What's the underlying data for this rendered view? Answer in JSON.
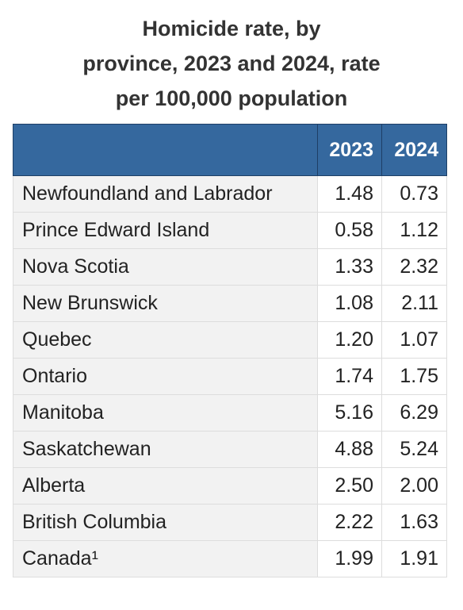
{
  "header": {
    "title": [
      "Homicide rate, by",
      "province, 2023 and 2024, rate",
      "per 100,000 population"
    ]
  },
  "table": {
    "columns": [
      "2023",
      "2024"
    ],
    "rows": [
      [
        "Newfoundland and Labrador",
        "1.48",
        "0.73"
      ],
      [
        "Prince Edward Island",
        "0.58",
        "1.12"
      ],
      [
        "Nova Scotia",
        "1.33",
        "2.32"
      ],
      [
        "New Brunswick",
        "1.08",
        "2.11"
      ],
      [
        "Quebec",
        "1.20",
        "1.07"
      ],
      [
        "Ontario",
        "1.74",
        "1.75"
      ],
      [
        "Manitoba",
        "5.16",
        "6.29"
      ],
      [
        "Saskatchewan",
        "4.88",
        "5.24"
      ],
      [
        "Alberta",
        "2.50",
        "2.00"
      ],
      [
        "British Columbia",
        "2.22",
        "1.63"
      ],
      [
        "Canada¹",
        "1.99",
        "1.91"
      ]
    ]
  }
}
